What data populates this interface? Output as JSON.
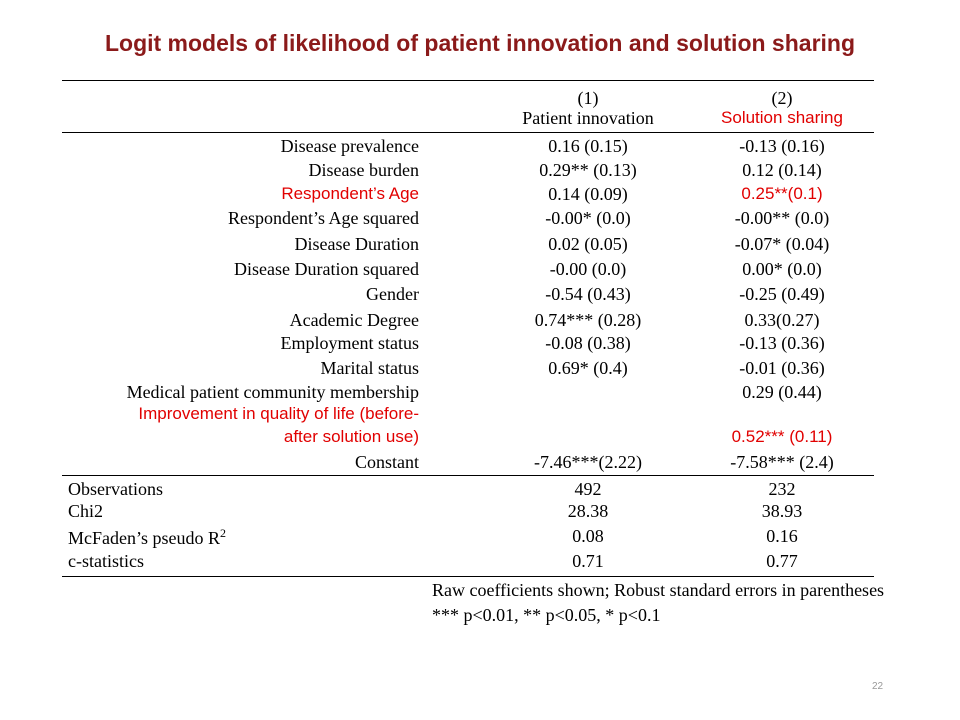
{
  "title": "Logit models of likelihood of patient innovation and solution sharing",
  "columns": [
    {
      "number": "(1)",
      "name": "Patient innovation"
    },
    {
      "number": "(2)",
      "name": "Solution sharing"
    }
  ],
  "rows": [
    {
      "label": "Disease prevalence",
      "c1": "0.16 (0.15)",
      "c2": "-0.13 (0.16)"
    },
    {
      "label": "Disease burden",
      "c1": "0.29** (0.13)",
      "c2": "0.12 (0.14)"
    },
    {
      "label": "Respondent’s Age",
      "c1": "0.14 (0.09)",
      "c2": "0.25**(0.1)"
    },
    {
      "label": "Respondent’s Age squared",
      "c1": "-0.00* (0.0)",
      "c2": "-0.00** (0.0)"
    },
    {
      "label": "Disease Duration",
      "c1": "0.02 (0.05)",
      "c2": "-0.07* (0.04)"
    },
    {
      "label": "Disease Duration squared",
      "c1": "-0.00 (0.0)",
      "c2": "0.00* (0.0)"
    },
    {
      "label": "Gender",
      "c1": "-0.54 (0.43)",
      "c2": "-0.25 (0.49)"
    },
    {
      "label": "Academic Degree",
      "c1": "0.74*** (0.28)",
      "c2": "0.33(0.27)"
    },
    {
      "label": "Employment status",
      "c1": "-0.08 (0.38)",
      "c2": "-0.13 (0.36)"
    },
    {
      "label": "Marital status",
      "c1": "0.69* (0.4)",
      "c2": "-0.01 (0.36)"
    },
    {
      "label": "Medical patient community membership",
      "c1": "",
      "c2": "0.29 (0.44)"
    },
    {
      "label_line1": "Improvement in quality of life (before-",
      "label_line2": "after solution use)",
      "c1": "",
      "c2": "0.52*** (0.11)"
    },
    {
      "label": "Constant",
      "c1": "-7.46***(2.22)",
      "c2": "-7.58*** (2.4)"
    }
  ],
  "stats": [
    {
      "label": "Observations",
      "c1": "492",
      "c2": "232"
    },
    {
      "label": "Chi2",
      "c1": "28.38",
      "c2": "38.93"
    },
    {
      "label": "McFaden’s pseudo R",
      "sup": "2",
      "c1": "0.08",
      "c2": "0.16"
    },
    {
      "label": "c-statistics",
      "c1": "0.71",
      "c2": "0.77"
    }
  ],
  "notes": [
    "Raw coefficients shown; Robust standard errors in parentheses",
    "*** p<0.01, ** p<0.05, * p<0.1"
  ],
  "page_number": "22",
  "colors": {
    "title": "#8b1a1a",
    "highlight": "#e10000"
  }
}
